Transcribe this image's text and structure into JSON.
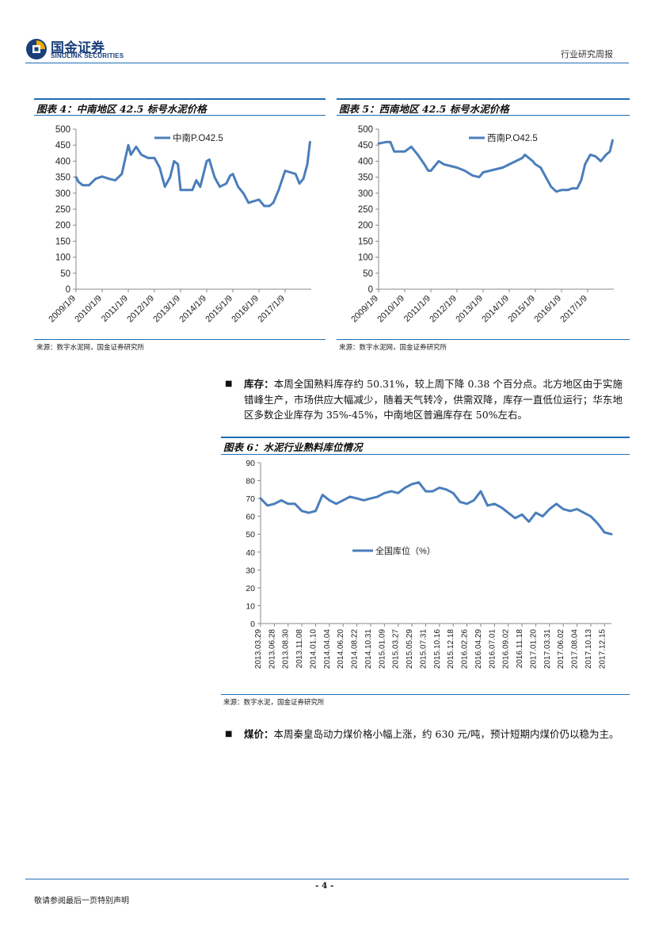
{
  "header": {
    "logo_cn": "国金证券",
    "logo_en": "SINOLINK SECURITIES",
    "report_type": "行业研究周报"
  },
  "colors": {
    "accent": "#1e6eb4",
    "series": "#4a7ebb"
  },
  "figure4": {
    "title": "图表 4：中南地区 42.5 标号水泥价格",
    "source": "来源：数字水泥网，国金证券研究所",
    "legend": "中南P.O42.5"
  },
  "figure5": {
    "title": "图表 5：西南地区 42.5 标号水泥价格",
    "source": "来源：数字水泥网，国金证券研究所",
    "legend": "西南P.O42.5"
  },
  "figure6": {
    "title": "图表 6：水泥行业熟料库位情况",
    "source": "来源：数字水泥，国金证券研究所",
    "legend": "全国库位（%）"
  },
  "paragraph_inventory": {
    "label": "库存：",
    "text": "本周全国熟料库存约 50.31%，较上周下降 0.38 个百分点。北方地区由于实施错峰生产，市场供应大幅减少，随着天气转冷，供需双降，库存一直低位运行；华东地区多数企业库存为 35%-45%，中南地区普遍库存在 50%左右。"
  },
  "paragraph_coal": {
    "label": "煤价：",
    "text": "本周秦皇岛动力煤价格小幅上涨，约 630 元/吨，预计短期内煤价仍以稳为主。"
  },
  "footer": {
    "page_number": "- 4 -",
    "disclaimer": "敬请参阅最后一页特别声明"
  },
  "chart_data": [
    {
      "type": "line",
      "title": "图表 4：中南地区 42.5 标号水泥价格",
      "series_name": "中南P.O42.5",
      "ylim": [
        0,
        500
      ],
      "yticks": [
        0,
        50,
        100,
        150,
        200,
        250,
        300,
        350,
        400,
        450,
        500
      ],
      "xticks": [
        "2009/1/9",
        "2010/1/9",
        "2011/1/9",
        "2012/1/9",
        "2013/1/9",
        "2014/1/9",
        "2015/1/9",
        "2016/1/9",
        "2017/1/9"
      ],
      "x": [
        2009.0,
        2009.1,
        2009.25,
        2009.5,
        2009.75,
        2010.0,
        2010.25,
        2010.5,
        2010.75,
        2011.0,
        2011.1,
        2011.3,
        2011.5,
        2011.75,
        2012.0,
        2012.2,
        2012.4,
        2012.6,
        2012.75,
        2012.9,
        2013.0,
        2013.2,
        2013.45,
        2013.6,
        2013.75,
        2014.0,
        2014.1,
        2014.3,
        2014.5,
        2014.75,
        2014.9,
        2015.0,
        2015.2,
        2015.4,
        2015.6,
        2015.8,
        2016.0,
        2016.2,
        2016.4,
        2016.55,
        2016.75,
        2017.0,
        2017.2,
        2017.4,
        2017.55,
        2017.7,
        2017.85,
        2017.95
      ],
      "values": [
        350,
        335,
        325,
        325,
        345,
        352,
        345,
        340,
        360,
        450,
        420,
        445,
        420,
        410,
        410,
        380,
        320,
        350,
        400,
        390,
        310,
        310,
        310,
        340,
        320,
        400,
        405,
        350,
        320,
        330,
        355,
        360,
        320,
        300,
        270,
        275,
        280,
        260,
        260,
        270,
        310,
        370,
        365,
        360,
        330,
        345,
        390,
        460
      ]
    },
    {
      "type": "line",
      "title": "图表 5：西南地区 42.5 标号水泥价格",
      "series_name": "西南P.O42.5",
      "ylim": [
        0,
        500
      ],
      "yticks": [
        0,
        50,
        100,
        150,
        200,
        250,
        300,
        350,
        400,
        450,
        500
      ],
      "xticks": [
        "2009/1/9",
        "2010/1/9",
        "2011/1/9",
        "2012/1/9",
        "2013/1/9",
        "2014/1/9",
        "2015/1/9",
        "2016/1/9",
        "2017/1/9"
      ],
      "x": [
        2009.0,
        2009.3,
        2009.45,
        2009.6,
        2010.0,
        2010.25,
        2010.5,
        2010.75,
        2010.9,
        2011.0,
        2011.3,
        2011.5,
        2011.75,
        2012.0,
        2012.3,
        2012.6,
        2012.85,
        2013.0,
        2013.25,
        2013.5,
        2013.75,
        2014.0,
        2014.25,
        2014.5,
        2014.6,
        2014.75,
        2014.9,
        2015.0,
        2015.2,
        2015.4,
        2015.6,
        2015.8,
        2016.0,
        2016.25,
        2016.4,
        2016.6,
        2016.75,
        2016.9,
        2017.1,
        2017.3,
        2017.5,
        2017.7,
        2017.85,
        2017.95
      ],
      "values": [
        455,
        460,
        460,
        430,
        430,
        445,
        420,
        390,
        370,
        370,
        400,
        390,
        385,
        380,
        370,
        355,
        350,
        365,
        370,
        375,
        380,
        390,
        400,
        410,
        420,
        410,
        400,
        390,
        380,
        350,
        320,
        305,
        310,
        310,
        315,
        315,
        340,
        390,
        420,
        415,
        400,
        420,
        430,
        465
      ]
    },
    {
      "type": "line",
      "title": "图表 6：水泥行业熟料库位情况",
      "series_name": "全国库位（%）",
      "ylim": [
        0,
        90
      ],
      "yticks": [
        0,
        10,
        20,
        30,
        40,
        50,
        60,
        70,
        80,
        90
      ],
      "xticks": [
        "2013.03.29",
        "2013.06.28",
        "2013.08.30",
        "2013.11.08",
        "2014.01.10",
        "2014.04.04",
        "2014.06.20",
        "2014.08.22",
        "2014.10.31",
        "2015.01.09",
        "2015.03.27",
        "2015.05.29",
        "2015.07.31",
        "2015.10.16",
        "2015.12.18",
        "2016.02.26",
        "2016.04.29",
        "2016.07.01",
        "2016.09.02",
        "2016.11.18",
        "2017.01.20",
        "2017.03.31",
        "2017.06.02",
        "2017.08.04",
        "2017.10.13",
        "2017.12.15"
      ],
      "x": [
        0,
        0.5,
        1,
        1.5,
        2,
        2.5,
        3,
        3.5,
        4,
        4.5,
        5,
        5.5,
        6,
        6.5,
        7,
        7.5,
        8,
        8.5,
        9,
        9.5,
        10,
        10.5,
        11,
        11.5,
        12,
        12.5,
        13,
        13.5,
        14,
        14.5,
        15,
        15.5,
        16,
        16.5,
        17,
        17.5,
        18,
        18.5,
        19,
        19.5,
        20,
        20.5,
        21,
        21.5,
        22,
        22.5,
        23,
        23.5,
        24,
        24.5,
        25,
        25.5
      ],
      "values": [
        70,
        66,
        67,
        69,
        67,
        67,
        63,
        62,
        63,
        72,
        69,
        67,
        69,
        71,
        70,
        69,
        70,
        71,
        73,
        74,
        73,
        76,
        78,
        79,
        74,
        74,
        76,
        75,
        73,
        68,
        67,
        69,
        74,
        66,
        67,
        65,
        62,
        59,
        61,
        57,
        62,
        60,
        64,
        67,
        64,
        63,
        64,
        62,
        60,
        56,
        51,
        50
      ]
    }
  ]
}
